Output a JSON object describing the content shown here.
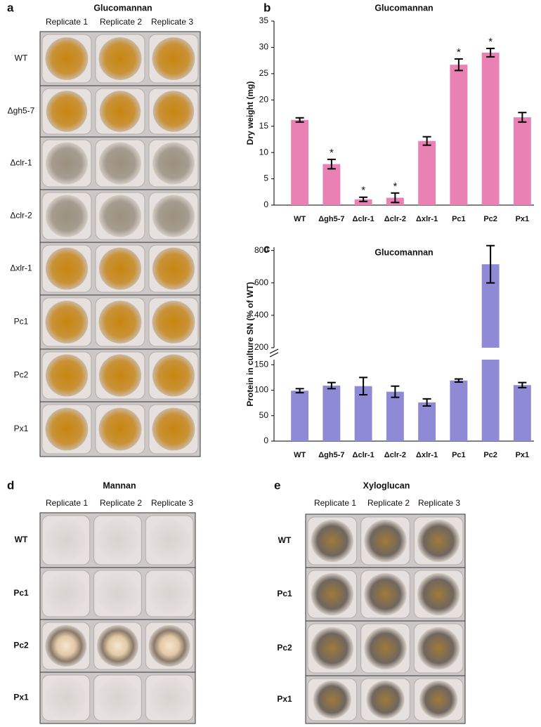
{
  "chart_data": [
    {
      "type": "bar",
      "panel": "b",
      "title": "Glucomannan",
      "y_label": "Dry weight (mg)",
      "categories": [
        "WT",
        "Δgh5-7",
        "Δclr-1",
        "Δclr-2",
        "Δxlr-1",
        "Pc1",
        "Pc2",
        "Px1"
      ],
      "values": [
        16.2,
        7.8,
        1.1,
        1.4,
        12.2,
        26.7,
        29.0,
        16.7
      ],
      "errors": [
        0.4,
        0.9,
        0.4,
        0.9,
        0.8,
        1.1,
        0.8,
        0.9
      ],
      "value_labels": [
        null,
        "*",
        "*",
        "*",
        null,
        "*",
        "*",
        null
      ],
      "color": "#e981b4",
      "ylim": [
        0,
        35
      ],
      "yticks": [
        0,
        5,
        10,
        15,
        20,
        25,
        30,
        35
      ]
    },
    {
      "type": "bar",
      "panel": "c",
      "title": "Glucomannan",
      "y_label": "Protein in culture SN (% of WT)",
      "categories": [
        "WT",
        "Δgh5-7",
        "Δclr-1",
        "Δclr-2",
        "Δxlr-1",
        "Pc1",
        "Pc2",
        "Px1"
      ],
      "values": [
        99,
        109,
        108,
        97,
        76,
        119,
        715,
        110
      ],
      "errors": [
        4,
        6,
        17,
        11,
        7,
        3,
        115,
        5
      ],
      "color": "#8f8ad6",
      "ylim": [
        0,
        820
      ],
      "ybreak": [
        160,
        200
      ],
      "yticks": [
        0,
        50,
        100,
        150,
        200,
        400,
        600,
        800
      ]
    }
  ],
  "panels": [
    {
      "letter": "a",
      "title": "Glucomannan",
      "columns": [
        "Replicate 1",
        "Replicate 2",
        "Replicate 3"
      ],
      "rows": [
        "WT",
        "Δgh5-7",
        "Δclr-1",
        "Δclr-2",
        "Δxlr-1",
        "Pc1",
        "Pc2",
        "Px1"
      ]
    },
    {
      "letter": "d",
      "title": "Mannan",
      "columns": [
        "Replicate 1",
        "Replicate 2",
        "Replicate 3"
      ],
      "rows": [
        "WT",
        "Pc1",
        "Pc2",
        "Px1"
      ]
    },
    {
      "letter": "e",
      "title": "Xyloglucan",
      "columns": [
        "Replicate 1",
        "Replicate 2",
        "Replicate 3"
      ],
      "rows": [
        "WT",
        "Pc1",
        "Pc2",
        "Px1"
      ]
    }
  ]
}
